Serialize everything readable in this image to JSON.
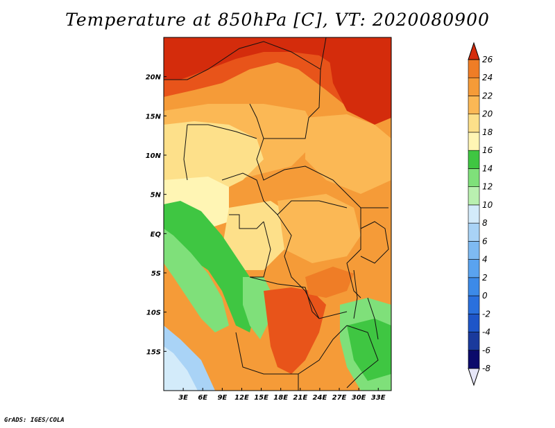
{
  "title": "Temperature at 850hPa [C], VT: 2020080900",
  "footer": "GrADS: IGES/COLA",
  "map": {
    "lon_range": [
      0,
      35
    ],
    "lat_range": [
      -20,
      25
    ],
    "x_ticks": [
      {
        "value": 3,
        "label": "3E"
      },
      {
        "value": 6,
        "label": "6E"
      },
      {
        "value": 9,
        "label": "9E"
      },
      {
        "value": 12,
        "label": "12E"
      },
      {
        "value": 15,
        "label": "15E"
      },
      {
        "value": 18,
        "label": "18E"
      },
      {
        "value": 21,
        "label": "21E"
      },
      {
        "value": 24,
        "label": "24E"
      },
      {
        "value": 27,
        "label": "27E"
      },
      {
        "value": 30,
        "label": "30E"
      },
      {
        "value": 33,
        "label": "33E"
      }
    ],
    "y_ticks": [
      {
        "value": 20,
        "label": "20N"
      },
      {
        "value": 15,
        "label": "15N"
      },
      {
        "value": 10,
        "label": "10N"
      },
      {
        "value": 5,
        "label": "5N"
      },
      {
        "value": 0,
        "label": "EQ"
      },
      {
        "value": -5,
        "label": "5S"
      },
      {
        "value": -10,
        "label": "10S"
      },
      {
        "value": -15,
        "label": "15S"
      }
    ]
  },
  "colorbar": {
    "levels": [
      -8,
      -6,
      -4,
      -2,
      0,
      2,
      4,
      6,
      8,
      10,
      12,
      14,
      16,
      18,
      20,
      22,
      24,
      26
    ],
    "labels": [
      "-8",
      "-6",
      "-4",
      "-2",
      "0",
      "2",
      "4",
      "6",
      "8",
      "10",
      "12",
      "14",
      "16",
      "18",
      "20",
      "22",
      "24",
      "26"
    ],
    "colors": [
      "#0b0a6b",
      "#1a3a9c",
      "#1e55c8",
      "#2a70dd",
      "#3c8ae8",
      "#5aa3ef",
      "#7ebaf2",
      "#a9d3f6",
      "#d3ebfa",
      "#b9f0b0",
      "#7fe07a",
      "#3fc642",
      "#fff5b4",
      "#fde08a",
      "#fbb855",
      "#f59b38",
      "#ef7d26",
      "#e8541a",
      "#d42c0c"
    ]
  },
  "regions": [
    {
      "name": "very-hot-north",
      "color": "#d42c0c"
    },
    {
      "name": "hot-north",
      "color": "#e8541a"
    },
    {
      "name": "warm",
      "color": "#f59b38"
    },
    {
      "name": "mild",
      "color": "#fbb855"
    },
    {
      "name": "cool",
      "color": "#fde08a"
    },
    {
      "name": "cooler",
      "color": "#fff5b4"
    },
    {
      "name": "green",
      "color": "#3fc642"
    },
    {
      "name": "light-green",
      "color": "#7fe07a"
    },
    {
      "name": "pale-green",
      "color": "#b9f0b0"
    },
    {
      "name": "blue",
      "color": "#a9d3f6"
    },
    {
      "name": "hot-southcentral",
      "color": "#e8541a"
    }
  ]
}
